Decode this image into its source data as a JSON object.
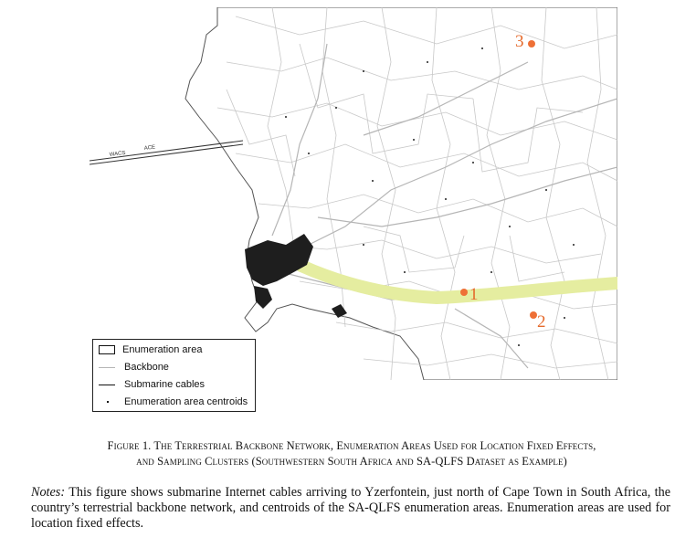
{
  "map": {
    "cables": [
      "WACS",
      "ACE"
    ],
    "clusters": [
      {
        "label": "3"
      },
      {
        "label": "1"
      },
      {
        "label": "2"
      }
    ],
    "colors": {
      "cluster": "#ee7036",
      "buffer": "#e5eda0",
      "backbone": "#b5b5b5",
      "ea_boundary": "#c8c8c8",
      "cable": "#333333"
    }
  },
  "legend": {
    "items": [
      {
        "label": "Enumeration area",
        "symbol": "box"
      },
      {
        "label": "Backbone",
        "symbol": "grey-line"
      },
      {
        "label": "Submarine cables",
        "symbol": "black-line"
      },
      {
        "label": "Enumeration area centroids",
        "symbol": "dot"
      }
    ]
  },
  "caption": {
    "line1": "Figure 1. The Terrestrial Backbone Network, Enumeration Areas Used for Location Fixed Effects,",
    "line2": "and Sampling Clusters (Southwestern South Africa and SA-QLFS Dataset as Example)"
  },
  "notes": {
    "lead": "Notes:",
    "text": "This figure shows submarine Internet cables arriving to Yzerfontein, just north of Cape Town in South Africa, the country’s terrestrial backbone network, and centroids of the SA-QLFS enumeration areas. Enumeration areas are used for location fixed effects."
  }
}
